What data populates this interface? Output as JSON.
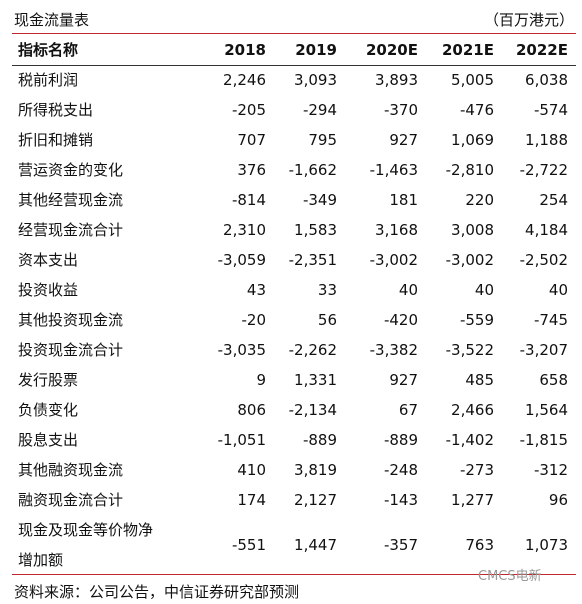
{
  "header": {
    "title": "现金流量表",
    "unit": "（百万港元）"
  },
  "table": {
    "columns": [
      "指标名称",
      "2018",
      "2019",
      "2020E",
      "2021E",
      "2022E"
    ],
    "rows": [
      [
        "税前利润",
        "2,246",
        "3,093",
        "3,893",
        "5,005",
        "6,038"
      ],
      [
        "所得税支出",
        "-205",
        "-294",
        "-370",
        "-476",
        "-574"
      ],
      [
        "折旧和摊销",
        "707",
        "795",
        "927",
        "1,069",
        "1,188"
      ],
      [
        "营运资金的变化",
        "376",
        "-1,662",
        "-1,463",
        "-2,810",
        "-2,722"
      ],
      [
        "其他经营现金流",
        "-814",
        "-349",
        "181",
        "220",
        "254"
      ],
      [
        "经营现金流合计",
        "2,310",
        "1,583",
        "3,168",
        "3,008",
        "4,184"
      ],
      [
        "资本支出",
        "-3,059",
        "-2,351",
        "-3,002",
        "-3,002",
        "-2,502"
      ],
      [
        "投资收益",
        "43",
        "33",
        "40",
        "40",
        "40"
      ],
      [
        "其他投资现金流",
        "-20",
        "56",
        "-420",
        "-559",
        "-745"
      ],
      [
        "投资现金流合计",
        "-3,035",
        "-2,262",
        "-3,382",
        "-3,522",
        "-3,207"
      ],
      [
        "发行股票",
        "9",
        "1,331",
        "927",
        "485",
        "658"
      ],
      [
        "负债变化",
        "806",
        "-2,134",
        "67",
        "2,466",
        "1,564"
      ],
      [
        "股息支出",
        "-1,051",
        "-889",
        "-889",
        "-1,402",
        "-1,815"
      ],
      [
        "其他融资现金流",
        "410",
        "3,819",
        "-248",
        "-273",
        "-312"
      ],
      [
        "融资现金流合计",
        "174",
        "2,127",
        "-143",
        "1,277",
        "96"
      ],
      [
        "现金及现金等价物净\n增加额",
        "-551",
        "1,447",
        "-357",
        "763",
        "1,073"
      ]
    ]
  },
  "footer": {
    "source": "资料来源：公司公告，中信证券研究部预测",
    "watermark": "CMCS电新"
  }
}
